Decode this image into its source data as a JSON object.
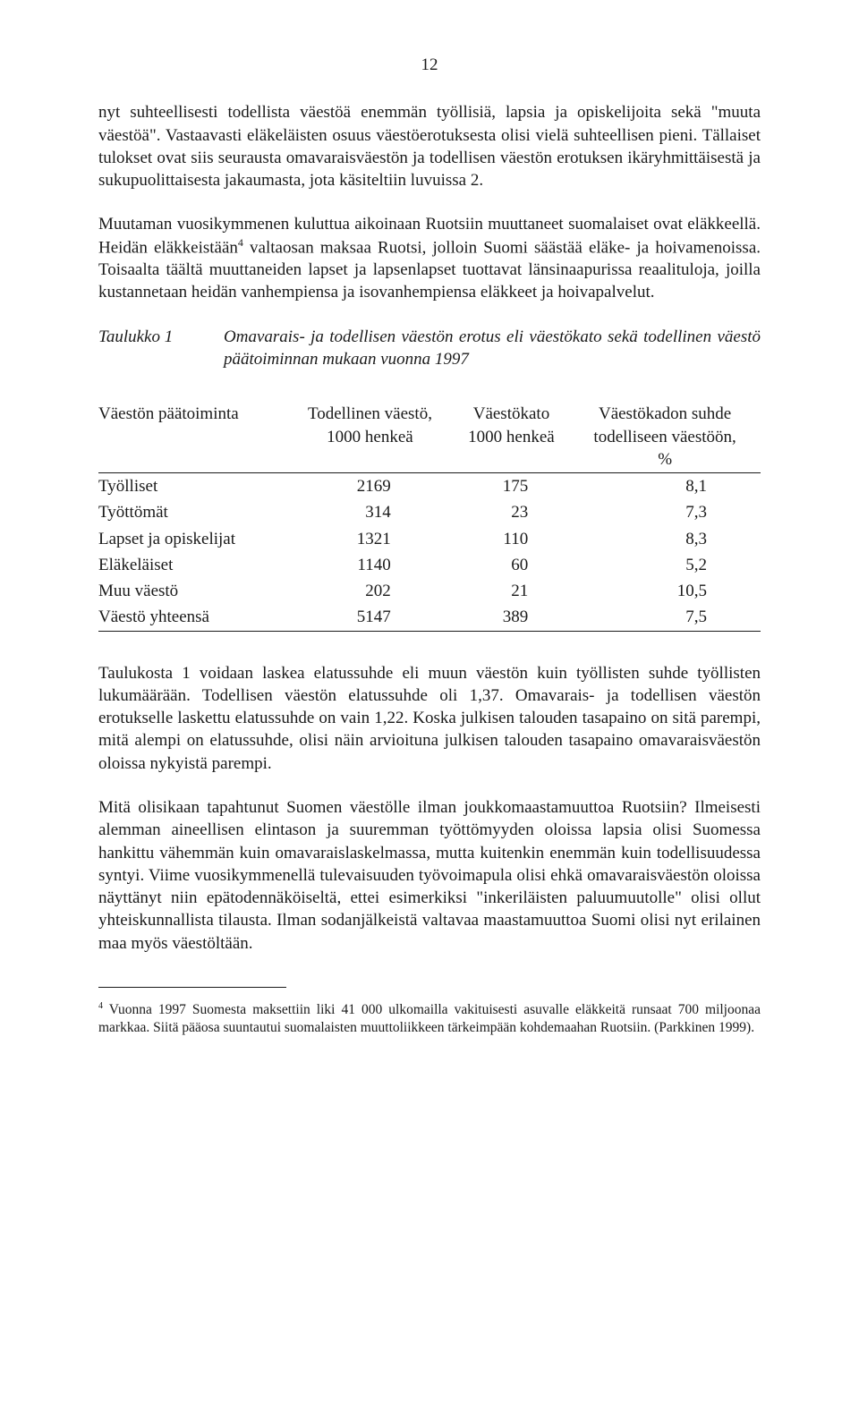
{
  "page_number": "12",
  "p1": "nyt suhteellisesti todellista väestöä enemmän työllisiä, lapsia ja opiskelijoita sekä \"muuta väestöä\". Vastaavasti eläkeläisten osuus väestöerotuksesta olisi vielä suhteellisen pieni. Tällaiset tulokset ovat siis seurausta omavaraisväestön ja todellisen väestön erotuksen ikäryhmittäisestä ja sukupuolittaisesta jakaumasta, jota käsiteltiin luvuissa 2.",
  "p2_a": "Muutaman vuosikymmenen kuluttua aikoinaan Ruotsiin muuttaneet suomalaiset ovat eläkkeellä. Heidän eläkkeistään",
  "p2_sup": "4",
  "p2_b": " valtaosan maksaa Ruotsi, jolloin Suomi säästää eläke- ja hoivamenoissa. Toisaalta täältä muuttaneiden lapset ja lapsenlapset tuottavat länsinaapurissa reaalituloja, joilla kustannetaan heidän vanhempiensa ja isovanhempiensa eläkkeet ja hoivapalvelut.",
  "table_caption_label": "Taulukko 1",
  "table_caption_text": "Omavarais- ja todellisen väestön erotus eli väestökato sekä todellinen väestö päätoiminnan mukaan vuonna 1997",
  "table": {
    "col1_header": "Väestön päätoiminta",
    "col2_line1": "Todellinen väestö,",
    "col2_line2": "1000 henkeä",
    "col3_line1": "Väestökato",
    "col3_line2": "1000 henkeä",
    "col4_line1": "Väestökadon suhde",
    "col4_line2": "todelliseen väestöön,",
    "col4_line3": "%",
    "rows": [
      {
        "c1": "Työlliset",
        "c2": "2169",
        "c3": "175",
        "c4": "8,1"
      },
      {
        "c1": "Työttömät",
        "c2": "314",
        "c3": "23",
        "c4": "7,3"
      },
      {
        "c1": "Lapset ja opiskelijat",
        "c2": "1321",
        "c3": "110",
        "c4": "8,3"
      },
      {
        "c1": "Eläkeläiset",
        "c2": "1140",
        "c3": "60",
        "c4": "5,2"
      },
      {
        "c1": "Muu väestö",
        "c2": "202",
        "c3": "21",
        "c4": "10,5"
      },
      {
        "c1": "Väestö yhteensä",
        "c2": "5147",
        "c3": "389",
        "c4": "7,5"
      }
    ]
  },
  "p3": "Taulukosta 1 voidaan laskea elatussuhde eli muun väestön kuin työllisten suhde työllisten lukumäärään. Todellisen väestön elatussuhde oli 1,37. Omavarais- ja todellisen väestön erotukselle laskettu elatussuhde on vain 1,22. Koska julkisen talouden tasapaino on sitä parempi, mitä alempi on elatussuhde, olisi näin arvioituna julkisen talouden tasapaino omavaraisväestön oloissa nykyistä parempi.",
  "p4": "Mitä olisikaan tapahtunut Suomen väestölle ilman joukkomaastamuuttoa Ruotsiin? Ilmeisesti alemman aineellisen elintason ja suuremman työttömyyden oloissa lapsia olisi Suomessa hankittu vähemmän kuin omavaraislaskelmassa, mutta kuitenkin enemmän kuin todellisuudessa syntyi. Viime vuosikymmenellä tulevaisuuden työvoimapula olisi ehkä omavaraisväestön oloissa näyttänyt niin epätodennäköiseltä, ettei esimerkiksi \"inkeriläisten paluumuutolle\" olisi ollut yhteiskunnallista tilausta. Ilman sodanjälkeistä valtavaa maastamuuttoa Suomi olisi nyt erilainen maa myös väestöltään.",
  "footnote_sup": "4",
  "footnote_text": " Vuonna 1997 Suomesta maksettiin liki 41 000 ulkomailla vakituisesti asuvalle eläkkeitä runsaat 700 miljoonaa markkaa. Siitä pääosa suuntautui suomalaisten muuttoliikkeen tärkeimpään kohdemaahan Ruotsiin. (Parkkinen 1999)."
}
